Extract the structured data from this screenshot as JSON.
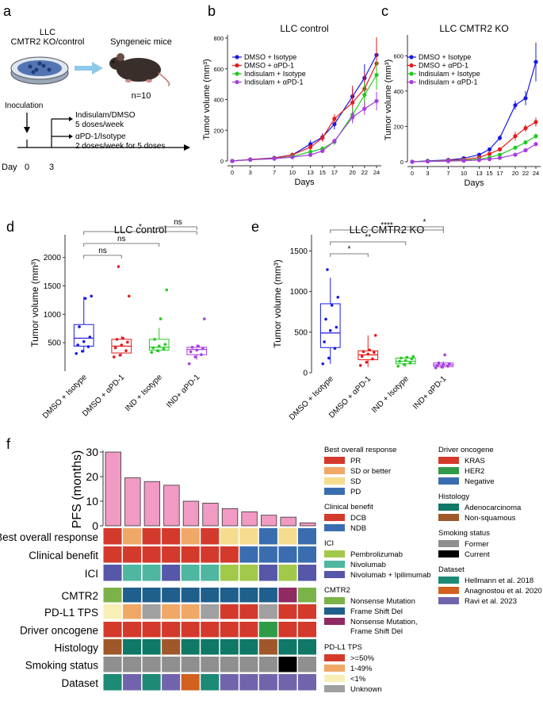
{
  "panel_letters": [
    "a",
    "b",
    "c",
    "d",
    "e",
    "f"
  ],
  "panel_a": {
    "cells_label_line1": "LLC",
    "cells_label_line2": "CMTR2 KO/control",
    "mice_label": "Syngeneic mice",
    "n_label": "n=10",
    "inoculation_label": "Inoculation",
    "treatment1_line1": "Indisulam/DMSO",
    "treatment1_line2": "5 doses/week",
    "treatment2_line1": "αPD-1/Isotype",
    "treatment2_line2": "2 doses/week for 5 doses",
    "day_label": "Day",
    "day0": "0",
    "day3": "3"
  },
  "colors": {
    "blue": "#1a1ae6",
    "red": "#e61a1a",
    "green": "#22c922",
    "purple": "#a63de0",
    "pink": "#f09ac4"
  },
  "chart_data": [
    {
      "panel": "b",
      "type": "line",
      "title": "LLC control",
      "xlabel": "Days",
      "ylabel": "Tumor volume (mm³)",
      "x": [
        0,
        3,
        7,
        10,
        13,
        15,
        17,
        20,
        22,
        24
      ],
      "xticks": [
        "0",
        "3",
        "7",
        "10",
        "13",
        "15",
        "17",
        "20",
        "22",
        "24"
      ],
      "ylim": [
        0,
        800
      ],
      "yticks": [
        "0",
        "200",
        "400",
        "600",
        "800"
      ],
      "series": [
        {
          "name": "DMSO + Isotype",
          "color": "#1a1ae6",
          "values": [
            0,
            10,
            20,
            40,
            110,
            155,
            240,
            420,
            540,
            690
          ],
          "err": [
            0,
            3,
            5,
            10,
            25,
            25,
            35,
            50,
            90,
            70
          ]
        },
        {
          "name": "DMSO + αPD-1",
          "color": "#e61a1a",
          "values": [
            0,
            10,
            18,
            40,
            90,
            150,
            275,
            380,
            470,
            635
          ],
          "err": [
            0,
            3,
            5,
            10,
            20,
            25,
            30,
            110,
            110,
            170
          ]
        },
        {
          "name": "Indisulam + Isotype",
          "color": "#22c922",
          "values": [
            0,
            8,
            15,
            30,
            60,
            80,
            125,
            300,
            430,
            560
          ],
          "err": [
            0,
            2,
            4,
            6,
            10,
            15,
            20,
            45,
            80,
            90
          ]
        },
        {
          "name": "Indisulam + αPD-1",
          "color": "#a63de0",
          "values": [
            0,
            8,
            15,
            25,
            40,
            65,
            130,
            285,
            340,
            390
          ],
          "err": [
            0,
            2,
            3,
            5,
            8,
            10,
            15,
            40,
            40,
            60
          ]
        }
      ]
    },
    {
      "panel": "c",
      "type": "line",
      "title": "LLC CMTR2 KO",
      "xlabel": "Days",
      "ylabel": "Tumor volume (mm³)",
      "x": [
        0,
        3,
        7,
        10,
        13,
        15,
        17,
        20,
        22,
        24
      ],
      "xticks": [
        "0",
        "3",
        "7",
        "10",
        "13",
        "15",
        "17",
        "20",
        "22",
        "24"
      ],
      "ylim": [
        0,
        700
      ],
      "yticks": [
        "0",
        "200",
        "400",
        "600"
      ],
      "series": [
        {
          "name": "DMSO + Isotype",
          "color": "#1a1ae6",
          "values": [
            0,
            5,
            10,
            20,
            40,
            70,
            135,
            320,
            360,
            565
          ],
          "err": [
            0,
            1,
            2,
            4,
            8,
            10,
            15,
            25,
            40,
            110
          ]
        },
        {
          "name": "DMSO + αPD-1",
          "color": "#e61a1a",
          "values": [
            0,
            3,
            8,
            12,
            25,
            45,
            70,
            145,
            190,
            225
          ],
          "err": [
            0,
            1,
            2,
            3,
            5,
            8,
            10,
            25,
            20,
            25
          ]
        },
        {
          "name": "Indisulam + Isotype",
          "color": "#22c922",
          "values": [
            0,
            3,
            5,
            8,
            15,
            25,
            40,
            80,
            110,
            145
          ],
          "err": [
            0,
            1,
            1,
            2,
            3,
            4,
            5,
            8,
            10,
            15
          ]
        },
        {
          "name": "Indisulam + αPD-1",
          "color": "#a63de0",
          "values": [
            0,
            2,
            4,
            6,
            10,
            15,
            22,
            40,
            65,
            100
          ],
          "err": [
            0,
            1,
            1,
            1,
            2,
            3,
            4,
            6,
            8,
            12
          ]
        }
      ]
    },
    {
      "panel": "d",
      "type": "box",
      "title": "LLC control",
      "ylabel": "Tumor volume (mm³)",
      "ylim": [
        0,
        2400
      ],
      "yticks": [
        "500",
        "1000",
        "1500",
        "2000"
      ],
      "categories": [
        "DMSO + Isotype",
        "DMSO + αPD-1",
        "IND + Isotype",
        "IND+ αPD-1"
      ],
      "colors": [
        "#1a1ae6",
        "#e61a1a",
        "#22c922",
        "#a63de0"
      ],
      "boxes": [
        {
          "min": 330,
          "q1": 440,
          "median": 580,
          "q3": 820,
          "max": 1310
        },
        {
          "min": 270,
          "q1": 320,
          "median": 440,
          "q3": 560,
          "max": 620
        },
        {
          "min": 330,
          "q1": 370,
          "median": 420,
          "q3": 560,
          "max": 760
        },
        {
          "min": 200,
          "q1": 290,
          "median": 380,
          "q3": 420,
          "max": 470
        }
      ],
      "points": [
        [
          310,
          350,
          430,
          460,
          520,
          600,
          780,
          1280,
          1320
        ],
        [
          250,
          280,
          360,
          410,
          460,
          510,
          560,
          580,
          1320,
          1840
        ],
        [
          330,
          360,
          390,
          410,
          440,
          470,
          560,
          920,
          1430
        ],
        [
          130,
          250,
          290,
          340,
          370,
          400,
          420,
          440,
          920
        ]
      ],
      "comparisons": [
        {
          "a": 0,
          "b": 1,
          "label": "ns"
        },
        {
          "a": 0,
          "b": 2,
          "label": "ns"
        },
        {
          "a": 0,
          "b": 3,
          "label": "*"
        },
        {
          "a": 2,
          "b": 3,
          "label": "ns"
        }
      ]
    },
    {
      "panel": "e",
      "type": "box",
      "title": "LLC CMTR2 KO",
      "ylabel": "Tumor volume (mm³)",
      "ylim": [
        0,
        1700
      ],
      "yticks": [
        "0",
        "500",
        "1000",
        "1500"
      ],
      "categories": [
        "DMSO + Isotype",
        "DMSO + αPD-1",
        "IND + Isotype",
        "IND+ αPD-1"
      ],
      "colors": [
        "#1a1ae6",
        "#e61a1a",
        "#22c922",
        "#a63de0"
      ],
      "boxes": [
        {
          "min": 110,
          "q1": 310,
          "median": 490,
          "q3": 850,
          "max": 1170
        },
        {
          "min": 70,
          "q1": 160,
          "median": 220,
          "q3": 270,
          "max": 460
        },
        {
          "min": 70,
          "q1": 110,
          "median": 140,
          "q3": 180,
          "max": 200
        },
        {
          "min": 50,
          "q1": 75,
          "median": 95,
          "q3": 120,
          "max": 140
        }
      ],
      "points": [
        [
          110,
          180,
          300,
          380,
          520,
          560,
          660,
          830,
          930,
          1270
        ],
        [
          90,
          130,
          170,
          200,
          230,
          250,
          260,
          280,
          460
        ],
        [
          80,
          100,
          120,
          140,
          150,
          170,
          180,
          190,
          200
        ],
        [
          60,
          70,
          80,
          90,
          100,
          110,
          120,
          220
        ]
      ],
      "comparisons": [
        {
          "a": 0,
          "b": 1,
          "label": "*"
        },
        {
          "a": 0,
          "b": 2,
          "label": "**"
        },
        {
          "a": 0,
          "b": 3,
          "label": "****"
        },
        {
          "a": 2,
          "b": 3,
          "label": "*"
        }
      ]
    },
    {
      "panel": "f",
      "type": "bar",
      "ylabel": "PFS (months)",
      "ylim": [
        0,
        30
      ],
      "yticks": [
        "0",
        "10",
        "20",
        "30"
      ],
      "values": [
        30,
        19.5,
        18,
        16.5,
        10,
        9.2,
        7,
        5.7,
        4.3,
        3.5,
        1.2
      ],
      "color": "#f09ac4"
    }
  ],
  "heatmap": {
    "rows": [
      {
        "label": "Best overall response",
        "key": "bor",
        "cells": [
          "PR",
          "SD or better",
          "PR",
          "PR",
          "SD or better",
          "PR",
          "SD",
          "SD",
          "PD",
          "SD",
          "PD"
        ]
      },
      {
        "label": "Clinical benefit",
        "key": "cb",
        "cells": [
          "DCB",
          "DCB",
          "DCB",
          "DCB",
          "DCB",
          "DCB",
          "DCB",
          "NDB",
          "NDB",
          "NDB",
          "NDB"
        ]
      },
      {
        "label": "ICI",
        "key": "ici",
        "cells": [
          "Nivolumab + Ipilimumab",
          "Nivolumab",
          "Nivolumab",
          "Nivolumab + Ipilimumab",
          "Nivolumab",
          "Nivolumab",
          "Pembrolizumab",
          "Pembrolizumab",
          "Nivolumab + Ipilimumab",
          "Pembrolizumab",
          "Nivolumab + Ipilimumab"
        ]
      },
      {
        "label": "CMTR2",
        "key": "cmtr2",
        "cells": [
          "Nonsense Mutation",
          "Frame Shift Del",
          "Frame Shift Del",
          "Frame Shift Del",
          "Frame Shift Del",
          "Frame Shift Del",
          "Frame Shift Del",
          "Frame Shift Del",
          "Frame Shift Del",
          "Nonsense Mutation, Frame Shift Del",
          "Nonsense Mutation"
        ]
      },
      {
        "label": "PD-L1 TPS",
        "key": "pdl1",
        "cells": [
          "<1%",
          "1-49%",
          "Unknown",
          "1-49%",
          "1-49%",
          "Unknown",
          ">=50%",
          ">=50%",
          "Unknown",
          ">=50%",
          ">=50%"
        ]
      },
      {
        "label": "Driver oncogene",
        "key": "driver",
        "cells": [
          "KRAS",
          "KRAS",
          "KRAS",
          "KRAS",
          "KRAS",
          "KRAS",
          "KRAS",
          "KRAS",
          "HER2",
          "KRAS",
          "KRAS"
        ]
      },
      {
        "label": "Histology",
        "key": "hist",
        "cells": [
          "Non-squamous",
          "Adenocarcinoma",
          "Adenocarcinoma",
          "Non-squamous",
          "Adenocarcinoma",
          "Adenocarcinoma",
          "Adenocarcinoma",
          "Adenocarcinoma",
          "Non-squamous",
          "Adenocarcinoma",
          "Adenocarcinoma"
        ]
      },
      {
        "label": "Smoking status",
        "key": "smoke",
        "cells": [
          "Former",
          "Former",
          "Former",
          "Former",
          "Former",
          "Former",
          "Former",
          "Former",
          "Former",
          "Current",
          "Former"
        ]
      },
      {
        "label": "Dataset",
        "key": "dataset",
        "cells": [
          "Hellmann et al. 2018",
          "Ravi et al. 2023",
          "Hellmann et al. 2018",
          "Ravi et al. 2023",
          "Anagnostou et al. 2020",
          "Hellmann et al. 2018",
          "Ravi et al. 2023",
          "Ravi et al. 2023",
          "Ravi et al. 2023",
          "Ravi et al. 2023",
          "Ravi et al. 2023"
        ]
      }
    ],
    "legend_left": [
      {
        "title": "Best overall response",
        "items": [
          {
            "label": "PR",
            "color": "#d33a2c"
          },
          {
            "label": "SD or better",
            "color": "#f0a867"
          },
          {
            "label": "SD",
            "color": "#f6dc8e"
          },
          {
            "label": "PD",
            "color": "#3a6db0"
          }
        ]
      },
      {
        "title": "Clinical benefit",
        "items": [
          {
            "label": "DCB",
            "color": "#d33a2c"
          },
          {
            "label": "NDB",
            "color": "#3a6db0"
          }
        ]
      },
      {
        "title": "ICI",
        "items": [
          {
            "label": "Pembrolizumab",
            "color": "#a3c94b"
          },
          {
            "label": "Nivolumab",
            "color": "#4fb6a0"
          },
          {
            "label": "Nivolumab + Ipilimumab",
            "color": "#5657a8"
          }
        ]
      },
      {
        "title": "CMTR2",
        "items": [
          {
            "label": "Nonsense Mutation",
            "color": "#7bb24a"
          },
          {
            "label": "Frame Shift Del",
            "color": "#1f5f8b"
          },
          {
            "label": "Nonsense Mutation, Frame Shift Del",
            "color": "#8f2a63"
          }
        ]
      },
      {
        "title": "PD-L1 TPS",
        "items": [
          {
            "label": ">=50%",
            "color": "#d33a2c"
          },
          {
            "label": "1-49%",
            "color": "#f0a867"
          },
          {
            "label": "<1%",
            "color": "#f8efb6"
          },
          {
            "label": "Unknown",
            "color": "#a0a0a0"
          }
        ]
      }
    ],
    "legend_right": [
      {
        "title": "Driver oncogene",
        "items": [
          {
            "label": "KRAS",
            "color": "#d33a2c"
          },
          {
            "label": "HER2",
            "color": "#2f9a48"
          },
          {
            "label": "Negative",
            "color": "#3a6db0"
          }
        ]
      },
      {
        "title": "Histology",
        "items": [
          {
            "label": "Adenocarcinoma",
            "color": "#107866"
          },
          {
            "label": "Non-squamous",
            "color": "#a0582a"
          }
        ]
      },
      {
        "title": "Smoking status",
        "items": [
          {
            "label": "Former",
            "color": "#8f8f8f"
          },
          {
            "label": "Current",
            "color": "#000000"
          }
        ]
      },
      {
        "title": "Dataset",
        "items": [
          {
            "label": "Hellmann et al. 2018",
            "color": "#1d8a75"
          },
          {
            "label": "Anagnostou et al. 2020",
            "color": "#d2601e"
          },
          {
            "label": "Ravi et al. 2023",
            "color": "#7264ac"
          }
        ]
      }
    ]
  }
}
